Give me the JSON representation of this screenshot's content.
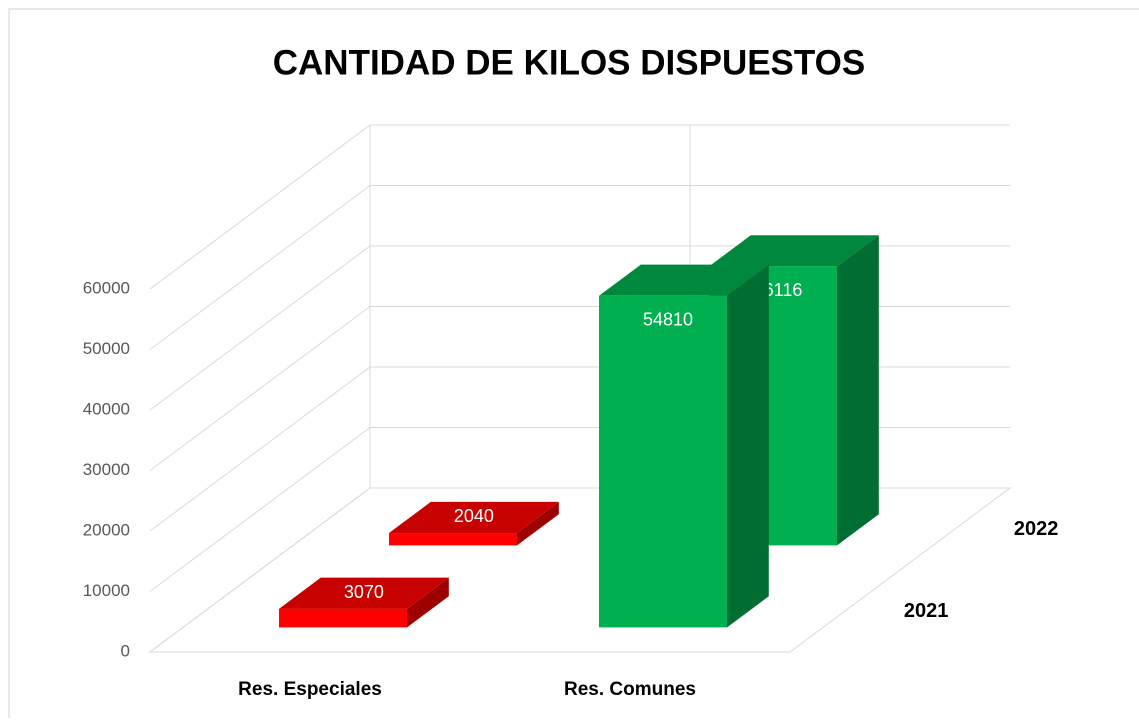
{
  "chart_data": {
    "type": "bar3d",
    "title": "CANTIDAD DE KILOS DISPUESTOS",
    "categories": [
      "Res. Especiales",
      "Res. Comunes"
    ],
    "category_colors": [
      "#ff0000",
      "#00b050"
    ],
    "series": [
      {
        "name": "2021",
        "values": [
          3070,
          54810
        ]
      },
      {
        "name": "2022",
        "values": [
          2040,
          46116
        ]
      }
    ],
    "ylim": [
      0,
      60000
    ],
    "yticks": [
      0,
      10000,
      20000,
      30000,
      40000,
      50000,
      60000
    ],
    "grid": true
  }
}
